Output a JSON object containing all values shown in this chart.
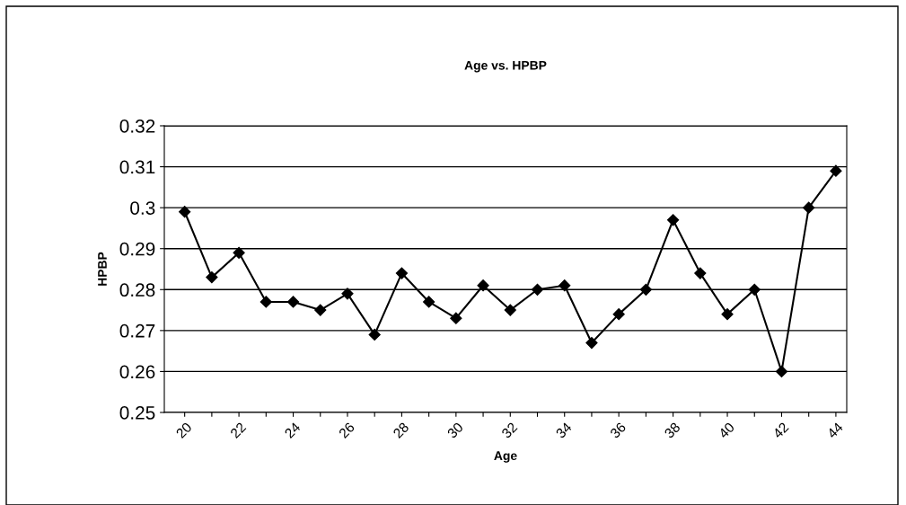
{
  "chart_data": {
    "type": "line",
    "title": "Age vs. HPBP",
    "xlabel": "Age",
    "ylabel": "HPBP",
    "categories": [
      "20",
      null,
      "22",
      null,
      "24",
      null,
      "26",
      null,
      "28",
      null,
      "30",
      null,
      "32",
      null,
      "34",
      null,
      "36",
      null,
      "38",
      null,
      "40",
      null,
      "42",
      null,
      "44"
    ],
    "series": [
      {
        "color": "#000000",
        "values": [
          0.299,
          0.283,
          0.289,
          0.277,
          0.277,
          0.275,
          0.279,
          0.269,
          0.284,
          0.277,
          0.273,
          0.281,
          0.275,
          0.28,
          0.281,
          0.267,
          0.274,
          0.28,
          0.297,
          0.284,
          0.274,
          0.28,
          0.26,
          0.3,
          0.309
        ]
      }
    ],
    "ylim": [
      0.25,
      0.32
    ],
    "yticks": [
      0.25,
      0.26,
      0.27,
      0.28,
      0.29,
      0.3,
      0.31,
      0.32
    ],
    "grid": "y",
    "legend": false,
    "marker": "diamond",
    "line_style": "solid"
  }
}
